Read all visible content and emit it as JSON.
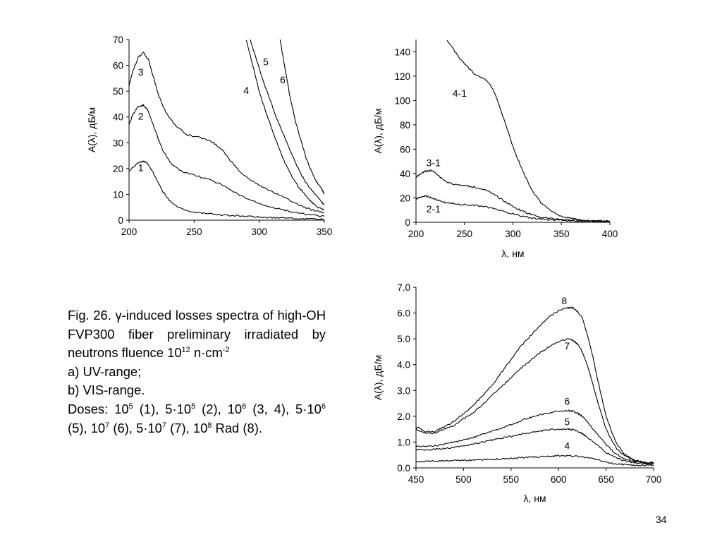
{
  "caption": {
    "line1_pre": "Fig. 26. γ-induced losses spectra of high-OH FVP300 fiber preliminary irradiated by neutrons fluence 10",
    "line1_sup": "12",
    "line1_unit": " n·cm",
    "line1_unit_sup": "-2",
    "item_a": "a)   UV-range;",
    "item_b": "b)   VIS-range.",
    "doses_label": "Doses: 10",
    "d1_sup": "5",
    "d1_txt": " (1), 5·10",
    "d2_sup": "5",
    "d2_txt": " (2), 10",
    "d3_sup": "6",
    "d3_txt": " (3, 4), 5·10",
    "d4_sup": "6",
    "d4_txt": " (5), 10",
    "d5_sup": "7",
    "d5_txt": " (6), 5·10",
    "d6_sup": "7",
    "d6_txt": " (7), 10",
    "d7_sup": "8",
    "d7_txt": " Rad (8)."
  },
  "page_number": "34",
  "chart_data": [
    {
      "type": "line",
      "xlabel": "",
      "ylabel": "A(λ), дБ/м",
      "xlim": [
        200,
        350
      ],
      "ylim": [
        0,
        70
      ],
      "xticks": [
        "200",
        "250",
        "300",
        "350"
      ],
      "yticks": [
        "0",
        "10",
        "20",
        "30",
        "40",
        "50",
        "60",
        "70"
      ],
      "grid": false,
      "series": [
        {
          "name": "1",
          "label_at": [
            209,
            19
          ],
          "x": [
            200,
            204,
            208,
            211,
            214,
            218,
            222,
            226,
            232,
            240,
            250,
            260,
            270,
            280,
            290,
            300,
            310,
            320,
            330,
            340,
            350
          ],
          "y": [
            19,
            21,
            22.5,
            22.8,
            22,
            19,
            15,
            11,
            7,
            4.5,
            3,
            2.5,
            2,
            1.8,
            1.5,
            1.2,
            1,
            0.8,
            0.6,
            0.5,
            0.4
          ]
        },
        {
          "name": "2",
          "label_at": [
            209,
            39
          ],
          "x": [
            200,
            203,
            207,
            211,
            214,
            218,
            222,
            226,
            232,
            240,
            250,
            260,
            270,
            280,
            290,
            300,
            310,
            320,
            330,
            340,
            350
          ],
          "y": [
            37,
            41,
            44,
            44.5,
            43,
            38,
            32,
            27,
            22,
            19,
            17.5,
            16,
            14,
            11,
            8.5,
            6.5,
            5,
            3.8,
            2.7,
            2,
            1.5
          ]
        },
        {
          "name": "3",
          "label_at": [
            209,
            56
          ],
          "x": [
            200,
            203,
            207,
            211,
            215,
            219,
            223,
            228,
            235,
            245,
            255,
            265,
            272,
            278,
            285,
            292,
            300,
            310,
            320,
            330,
            340,
            350
          ],
          "y": [
            52,
            58,
            63,
            65,
            62,
            55,
            48,
            42,
            37,
            33,
            32,
            30,
            27,
            23,
            19,
            16,
            13.5,
            11,
            8.5,
            6,
            4,
            3
          ]
        },
        {
          "name": "4",
          "label_at": [
            290,
            49
          ],
          "x": [
            290,
            295,
            300,
            305,
            310,
            315,
            320,
            325,
            330,
            335,
            340,
            345,
            350
          ],
          "y": [
            70,
            60,
            50,
            42,
            35,
            28,
            22,
            17,
            13,
            10,
            7,
            5,
            4
          ]
        },
        {
          "name": "5",
          "label_at": [
            305,
            60
          ],
          "x": [
            293,
            298,
            303,
            308,
            313,
            318,
            323,
            328,
            333,
            338,
            343,
            348,
            350
          ],
          "y": [
            70,
            62,
            54,
            47,
            40,
            34,
            28,
            22,
            17,
            13,
            10,
            7,
            6
          ]
        },
        {
          "name": "6",
          "label_at": [
            318,
            53
          ],
          "x": [
            316,
            320,
            324,
            328,
            332,
            336,
            340,
            344,
            348,
            350
          ],
          "y": [
            70,
            58,
            47,
            38,
            31,
            24,
            19,
            15,
            12,
            10
          ]
        }
      ]
    },
    {
      "type": "line",
      "xlabel": "λ, нм",
      "ylabel": "A(λ), дБ/м",
      "xlim": [
        200,
        400
      ],
      "ylim": [
        0,
        150
      ],
      "xticks": [
        "200",
        "250",
        "300",
        "350",
        "400"
      ],
      "yticks": [
        "0",
        "20",
        "40",
        "60",
        "80",
        "100",
        "120",
        "140"
      ],
      "grid": false,
      "series": [
        {
          "name": "4-1",
          "label_at": [
            245,
            103
          ],
          "x": [
            232,
            240,
            250,
            260,
            270,
            275,
            280,
            285,
            290,
            300,
            310,
            320,
            330,
            340,
            350,
            360,
            370,
            380,
            390,
            400
          ],
          "y": [
            150,
            140,
            130,
            122,
            118,
            115,
            108,
            98,
            86,
            62,
            42,
            26,
            15,
            9,
            5,
            3,
            2,
            1.5,
            1,
            1
          ]
        },
        {
          "name": "3-1",
          "label_at": [
            218,
            46
          ],
          "x": [
            200,
            205,
            210,
            215,
            220,
            225,
            232,
            240,
            250,
            260,
            270,
            280,
            290,
            300,
            310,
            320,
            330,
            340,
            350,
            360,
            370,
            380,
            390,
            400
          ],
          "y": [
            37,
            40,
            42,
            42.5,
            41,
            37,
            33,
            31,
            30,
            29,
            27,
            23,
            18,
            13,
            9,
            6,
            4,
            3,
            2.5,
            2,
            1.5,
            1,
            1,
            1
          ]
        },
        {
          "name": "2-1",
          "label_at": [
            218,
            8
          ],
          "x": [
            200,
            205,
            210,
            215,
            220,
            225,
            232,
            240,
            250,
            260,
            270,
            280,
            290,
            300,
            310,
            320,
            330,
            340,
            350,
            360,
            370,
            380,
            390,
            400
          ],
          "y": [
            19,
            21,
            21.5,
            20.5,
            19,
            17.5,
            16,
            15,
            14.5,
            14,
            13,
            11,
            9,
            7,
            5,
            3.5,
            2.5,
            2,
            1.5,
            1,
            1,
            0.8,
            0.6,
            0.5
          ]
        }
      ]
    },
    {
      "type": "line",
      "xlabel": "λ, нм",
      "ylabel": "A(λ), дБ/м",
      "xlim": [
        450,
        700
      ],
      "ylim": [
        0,
        7
      ],
      "xticks": [
        "450",
        "500",
        "550",
        "600",
        "650",
        "700"
      ],
      "yticks": [
        "0.0",
        "1.0",
        "2.0",
        "3.0",
        "4.0",
        "5.0",
        "6.0",
        "7.0"
      ],
      "grid": false,
      "series": [
        {
          "name": "8",
          "label_at": [
            606,
            6.35
          ],
          "x": [
            450,
            460,
            470,
            480,
            490,
            500,
            510,
            520,
            530,
            540,
            550,
            560,
            570,
            580,
            590,
            600,
            610,
            615,
            620,
            625,
            630,
            635,
            640,
            645,
            650,
            660,
            670,
            680,
            690,
            700
          ],
          "y": [
            1.6,
            1.4,
            1.4,
            1.6,
            1.8,
            2.1,
            2.4,
            2.8,
            3.2,
            3.7,
            4.2,
            4.7,
            5.1,
            5.5,
            5.85,
            6.1,
            6.2,
            6.2,
            6.05,
            5.8,
            5.2,
            4.5,
            3.6,
            2.8,
            2.0,
            1.0,
            0.5,
            0.3,
            0.2,
            0.2
          ]
        },
        {
          "name": "7",
          "label_at": [
            609,
            4.6
          ],
          "x": [
            450,
            460,
            470,
            480,
            490,
            500,
            510,
            520,
            530,
            540,
            550,
            560,
            570,
            580,
            590,
            600,
            610,
            615,
            620,
            625,
            630,
            635,
            640,
            645,
            650,
            660,
            670,
            680,
            690,
            700
          ],
          "y": [
            1.5,
            1.35,
            1.35,
            1.5,
            1.65,
            1.9,
            2.15,
            2.45,
            2.8,
            3.15,
            3.5,
            3.85,
            4.15,
            4.45,
            4.7,
            4.9,
            5.0,
            4.95,
            4.8,
            4.5,
            4.0,
            3.4,
            2.7,
            2.1,
            1.5,
            0.8,
            0.45,
            0.3,
            0.2,
            0.2
          ]
        },
        {
          "name": "6",
          "label_at": [
            609,
            2.45
          ],
          "x": [
            450,
            460,
            470,
            480,
            490,
            500,
            510,
            520,
            530,
            540,
            550,
            560,
            570,
            580,
            590,
            600,
            610,
            615,
            620,
            625,
            630,
            640,
            650,
            660,
            670,
            680,
            690,
            700
          ],
          "y": [
            0.85,
            0.82,
            0.85,
            0.92,
            1.0,
            1.08,
            1.18,
            1.3,
            1.42,
            1.55,
            1.68,
            1.82,
            1.95,
            2.05,
            2.15,
            2.2,
            2.22,
            2.2,
            2.12,
            2.0,
            1.8,
            1.35,
            0.9,
            0.55,
            0.35,
            0.25,
            0.2,
            0.18
          ]
        },
        {
          "name": "5",
          "label_at": [
            609,
            1.65
          ],
          "x": [
            450,
            460,
            470,
            480,
            490,
            500,
            510,
            520,
            530,
            540,
            550,
            560,
            570,
            580,
            590,
            600,
            610,
            615,
            620,
            625,
            630,
            640,
            650,
            660,
            670,
            680,
            690,
            700
          ],
          "y": [
            0.7,
            0.7,
            0.72,
            0.75,
            0.8,
            0.85,
            0.92,
            1.0,
            1.08,
            1.15,
            1.22,
            1.3,
            1.37,
            1.42,
            1.48,
            1.5,
            1.5,
            1.48,
            1.42,
            1.32,
            1.18,
            0.9,
            0.6,
            0.4,
            0.27,
            0.2,
            0.17,
            0.15
          ]
        },
        {
          "name": "4",
          "label_at": [
            609,
            0.72
          ],
          "x": [
            450,
            460,
            470,
            480,
            490,
            500,
            510,
            520,
            530,
            540,
            550,
            560,
            570,
            580,
            590,
            600,
            610,
            620,
            630,
            640,
            650,
            660,
            670,
            680,
            690,
            700
          ],
          "y": [
            0.25,
            0.25,
            0.26,
            0.27,
            0.28,
            0.29,
            0.3,
            0.32,
            0.33,
            0.35,
            0.37,
            0.39,
            0.41,
            0.43,
            0.45,
            0.47,
            0.47,
            0.45,
            0.4,
            0.32,
            0.22,
            0.15,
            0.12,
            0.1,
            0.1,
            0.1
          ]
        }
      ]
    }
  ]
}
